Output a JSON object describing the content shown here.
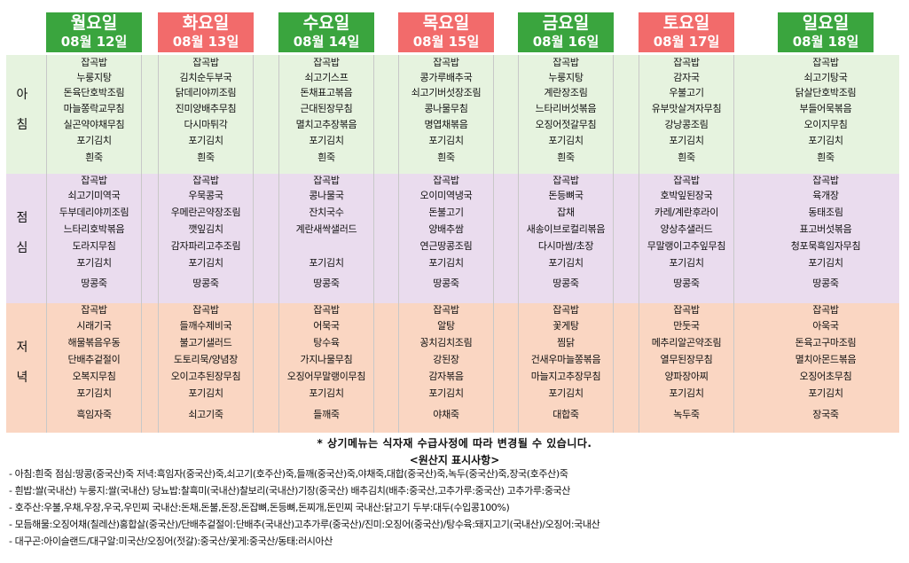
{
  "colors": {
    "weekday_header": "#3aa53e",
    "weekend_header": "#f26b6b",
    "breakfast_bg": "#e6f3df",
    "lunch_bg": "#eadcee",
    "dinner_bg": "#fad6c2"
  },
  "meals": {
    "breakfast": "아\n침",
    "lunch": "점\n심",
    "dinner": "저\n녁"
  },
  "days": [
    {
      "name": "월요일",
      "date": "08월 12일",
      "weekend": false,
      "breakfast": [
        "잡곡밥",
        "누룽지탕",
        "돈육단호박조림",
        "마늘쫑락교무침",
        "실곤약야채무침",
        "포기김치",
        "흰죽"
      ],
      "lunch": [
        "잡곡밥",
        "쇠고기미역국",
        "두부데리야끼조림",
        "느타리호박볶음",
        "도라지무침",
        "포기김치",
        "땅콩죽"
      ],
      "dinner": [
        "잡곡밥",
        "시래기국",
        "해물볶음우동",
        "단배추겉절이",
        "오복지무침",
        "포기김치",
        "흑임자죽"
      ]
    },
    {
      "name": "화요일",
      "date": "08월 13일",
      "weekend": true,
      "breakfast": [
        "잡곡밥",
        "김치순두부국",
        "닭데리야끼조림",
        "진미양배추무침",
        "다시마튀각",
        "포기김치",
        "흰죽"
      ],
      "lunch": [
        "잡곡밥",
        "우묵콩국",
        "우메란곤약장조림",
        "깻잎김치",
        "감자파리고추조림",
        "포기김치",
        "땅콩죽"
      ],
      "dinner": [
        "잡곡밥",
        "들깨수제비국",
        "불고기샐러드",
        "도토리묵/양념장",
        "오이고추된장무침",
        "포기김치",
        "쇠고기죽"
      ]
    },
    {
      "name": "수요일",
      "date": "08월 14일",
      "weekend": false,
      "breakfast": [
        "잡곡밥",
        "쇠고기스프",
        "돈채표고볶음",
        "근대된장무침",
        "멸치고추장볶음",
        "포기김치",
        "흰죽"
      ],
      "lunch": [
        "잡곡밥",
        "콩나물국",
        "잔치국수",
        "계란새싹샐러드",
        "",
        "포기김치",
        "땅콩죽"
      ],
      "dinner": [
        "잡곡밥",
        "어묵국",
        "탕수육",
        "가지나물무침",
        "오징어무말랭이무침",
        "포기김치",
        "들깨죽"
      ]
    },
    {
      "name": "목요일",
      "date": "08월 15일",
      "weekend": true,
      "breakfast": [
        "잡곡밥",
        "콩가루배추국",
        "쇠고기버섯장조림",
        "콩나물무침",
        "명엽채볶음",
        "포기김치",
        "흰죽"
      ],
      "lunch": [
        "잡곡밥",
        "오이미역냉국",
        "돈불고기",
        "양배추쌈",
        "연근땅콩조림",
        "포기김치",
        "땅콩죽"
      ],
      "dinner": [
        "잡곡밥",
        "알탕",
        "꽁치김치조림",
        "강된장",
        "감자볶음",
        "포기김치",
        "야채죽"
      ]
    },
    {
      "name": "금요일",
      "date": "08월 16일",
      "weekend": false,
      "breakfast": [
        "잡곡밥",
        "누룽지탕",
        "계란장조림",
        "느타리버섯볶음",
        "오징어젓갈무침",
        "포기김치",
        "흰죽"
      ],
      "lunch": [
        "잡곡밥",
        "돈등뼈국",
        "잡채",
        "새송이브로컬리볶음",
        "다시마쌈/초장",
        "포기김치",
        "땅콩죽"
      ],
      "dinner": [
        "잡곡밥",
        "꽃게탕",
        "찜닭",
        "건새우마늘쫑볶음",
        "마늘지고추장무침",
        "포기김치",
        "대합죽"
      ]
    },
    {
      "name": "토요일",
      "date": "08월 17일",
      "weekend": true,
      "breakfast": [
        "잡곡밥",
        "감자국",
        "우불고기",
        "유부맛살겨자무침",
        "강낭콩조림",
        "포기김치",
        "흰죽"
      ],
      "lunch": [
        "잡곡밥",
        "호박잎된장국",
        "카레/계란후라이",
        "양상추샐러드",
        "무말랭이고추잎무침",
        "포기김치",
        "땅콩죽"
      ],
      "dinner": [
        "잡곡밥",
        "만둣국",
        "메추리알곤약조림",
        "열무된장무침",
        "양파장아찌",
        "포기김치",
        "녹두죽"
      ]
    },
    {
      "name": "일요일",
      "date": "08월 18일",
      "weekend": false,
      "breakfast": [
        "잡곡밥",
        "쇠고기탕국",
        "닭살단호박조림",
        "부들어묵볶음",
        "오이지무침",
        "포기김치",
        "흰죽"
      ],
      "lunch": [
        "잡곡밥",
        "육개장",
        "동태조림",
        "표고버섯볶음",
        "청포묵흑임자무침",
        "포기김치",
        "땅콩죽"
      ],
      "dinner": [
        "잡곡밥",
        "아욱국",
        "돈육고구마조림",
        "멸치아몬드볶음",
        "오징어초무침",
        "포기김치",
        "장국죽"
      ]
    }
  ],
  "note": "* 상기메뉴는 식자재 수급사정에 따라 변경될 수 있습니다.",
  "origin_title": "<원산지 표시사항>",
  "origin_lines": [
    "-  아침:흰죽  점심:땅콩(중국산)죽  저녁:흑임자(중국산)죽,쇠고기(호주산)죽,들깨(중국산)죽,야채죽,대합(중국산)죽,녹두(중국산)죽,장국(호주산)죽",
    "-  흰밥:쌀(국내산)  누룽지:쌀(국내산)  당뇨밥:찰흑미(국내산)찰보리(국내산)기장(중국산)  배추김치(배추:중국산,고추가루:중국산)  고추가루:중국산",
    "-  호주산:우불,우채,우장,우국,우민찌    국내산:돈채,돈불,돈장,돈잡뼈,돈등뼈,돈찌개,돈민찌    국내산:닭고기    두부:대두(수입콩100%)",
    "-  모듬해물:오징어채(칠레산)홍합살(중국산)/단배추겉절이:단배추(국내산)고추가루(중국산)/진미:오징어(중국산)/탕수육:돼지고기(국내산)/오징어:국내산",
    "-  대구곤:아이슬랜드/대구알:미국산/오징어(젓갈):중국산/꽃게:중국산/동태:러시아산"
  ]
}
